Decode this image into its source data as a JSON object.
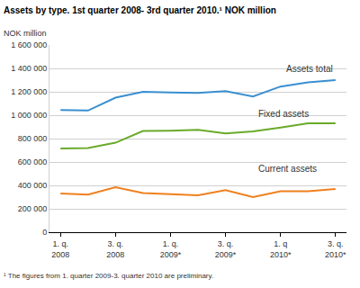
{
  "chart_data": {
    "type": "line",
    "title": "Assets by type. 1st quarter 2008- 3rd quarter 2010.¹ NOK million",
    "y_label": "NOK million",
    "footnote": "¹ The figures from 1. quarter 2009-3. quarter 2010 are preliminary.",
    "categories": [
      "1. q.\n2008",
      null,
      "3. q.\n2008",
      null,
      "1. q.\n2009*",
      null,
      "3. q.\n2009*",
      null,
      "1. q\n2010*",
      null,
      "3. q.\n2010*"
    ],
    "series": [
      {
        "name": "Assets total",
        "color": "#3a8fd0",
        "values": [
          1045000,
          1040000,
          1150000,
          1200000,
          1195000,
          1190000,
          1205000,
          1160000,
          1245000,
          1280000,
          1300000
        ]
      },
      {
        "name": "Fixed assets",
        "color": "#6aaa2a",
        "values": [
          715000,
          720000,
          765000,
          865000,
          868000,
          875000,
          845000,
          862000,
          895000,
          930000,
          930000
        ]
      },
      {
        "name": "Current assets",
        "color": "#f0801e",
        "values": [
          330000,
          322000,
          385000,
          335000,
          325000,
          315000,
          360000,
          300000,
          350000,
          350000,
          370000
        ]
      }
    ],
    "ylim": [
      0,
      1600000
    ],
    "yticks": [
      0,
      {
        "value": 200000,
        "label": "200 000"
      },
      {
        "value": 400000,
        "label": "400 000"
      },
      {
        "value": 600000,
        "label": "600 000"
      },
      {
        "value": 800000,
        "label": "800 000"
      },
      {
        "value": 1000000,
        "label": "1 000 000"
      },
      {
        "value": 1200000,
        "label": "1 200 000"
      },
      {
        "value": 1400000,
        "label": "1 400 000"
      },
      {
        "value": 1600000,
        "label": "1 600 000"
      }
    ],
    "grid": true
  }
}
